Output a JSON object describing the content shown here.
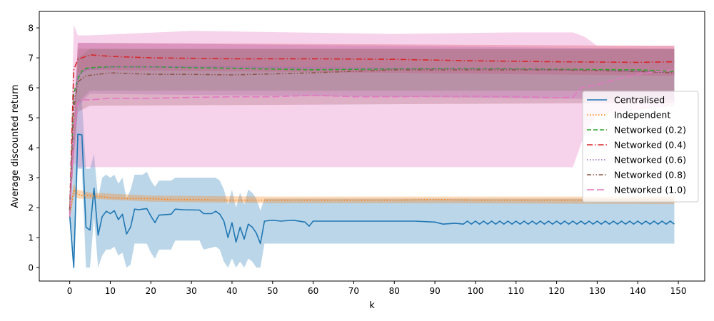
{
  "chart_data": {
    "type": "line",
    "title": "",
    "xlabel": "k",
    "ylabel": "Average discounted return",
    "xlim": [
      -7.5,
      156.5
    ],
    "ylim": [
      -0.45,
      8.55
    ],
    "xticks": [
      0,
      10,
      20,
      30,
      40,
      50,
      60,
      70,
      80,
      90,
      100,
      110,
      120,
      130,
      140,
      150
    ],
    "yticks": [
      0,
      1,
      2,
      3,
      4,
      5,
      6,
      7,
      8
    ],
    "grid": false,
    "legend_position": "center-right",
    "series": [
      {
        "name": "Centralised",
        "color": "#1f77b4",
        "style": "solid",
        "points": [
          [
            0,
            1.75
          ],
          [
            1,
            0.0
          ],
          [
            2,
            4.45
          ],
          [
            3,
            4.43
          ],
          [
            4,
            1.35
          ],
          [
            5,
            1.25
          ],
          [
            6,
            2.65
          ],
          [
            7,
            1.08
          ],
          [
            8,
            1.7
          ],
          [
            9,
            1.88
          ],
          [
            10,
            1.8
          ],
          [
            11,
            1.9
          ],
          [
            12,
            1.6
          ],
          [
            13,
            1.78
          ],
          [
            14,
            1.12
          ],
          [
            15,
            1.35
          ],
          [
            16,
            1.95
          ],
          [
            17,
            1.93
          ],
          [
            18,
            1.95
          ],
          [
            19,
            1.97
          ],
          [
            20,
            1.72
          ],
          [
            21,
            1.5
          ],
          [
            22,
            1.75
          ],
          [
            25,
            1.78
          ],
          [
            26,
            1.95
          ],
          [
            28,
            1.93
          ],
          [
            32,
            1.92
          ],
          [
            33,
            1.8
          ],
          [
            35,
            1.8
          ],
          [
            36,
            1.88
          ],
          [
            37,
            1.78
          ],
          [
            38,
            1.55
          ],
          [
            39,
            1.0
          ],
          [
            40,
            1.5
          ],
          [
            41,
            0.85
          ],
          [
            42,
            1.35
          ],
          [
            43,
            0.95
          ],
          [
            44,
            1.45
          ],
          [
            45,
            1.35
          ],
          [
            46,
            1.15
          ],
          [
            47,
            0.8
          ],
          [
            48,
            1.55
          ],
          [
            50,
            1.58
          ],
          [
            52,
            1.55
          ],
          [
            55,
            1.58
          ],
          [
            58,
            1.52
          ],
          [
            59,
            1.38
          ],
          [
            60,
            1.55
          ],
          [
            65,
            1.55
          ],
          [
            70,
            1.55
          ],
          [
            75,
            1.55
          ],
          [
            80,
            1.55
          ],
          [
            85,
            1.55
          ],
          [
            90,
            1.52
          ],
          [
            92,
            1.45
          ],
          [
            95,
            1.48
          ],
          [
            97,
            1.45
          ],
          [
            98,
            1.55
          ],
          [
            99,
            1.45
          ],
          [
            100,
            1.55
          ],
          [
            101,
            1.45
          ],
          [
            102,
            1.55
          ],
          [
            103,
            1.45
          ],
          [
            104,
            1.55
          ],
          [
            105,
            1.45
          ],
          [
            106,
            1.55
          ],
          [
            107,
            1.45
          ],
          [
            108,
            1.55
          ],
          [
            109,
            1.45
          ],
          [
            110,
            1.55
          ],
          [
            111,
            1.45
          ],
          [
            112,
            1.55
          ],
          [
            113,
            1.45
          ],
          [
            114,
            1.55
          ],
          [
            115,
            1.45
          ],
          [
            116,
            1.55
          ],
          [
            117,
            1.45
          ],
          [
            118,
            1.55
          ],
          [
            119,
            1.45
          ],
          [
            120,
            1.55
          ],
          [
            121,
            1.45
          ],
          [
            122,
            1.55
          ],
          [
            123,
            1.45
          ],
          [
            124,
            1.55
          ],
          [
            125,
            1.45
          ],
          [
            126,
            1.55
          ],
          [
            127,
            1.45
          ],
          [
            128,
            1.55
          ],
          [
            129,
            1.45
          ],
          [
            130,
            1.55
          ],
          [
            131,
            1.45
          ],
          [
            132,
            1.55
          ],
          [
            133,
            1.45
          ],
          [
            134,
            1.55
          ],
          [
            135,
            1.45
          ],
          [
            136,
            1.55
          ],
          [
            137,
            1.45
          ],
          [
            138,
            1.55
          ],
          [
            139,
            1.45
          ],
          [
            140,
            1.55
          ],
          [
            141,
            1.45
          ],
          [
            142,
            1.55
          ],
          [
            143,
            1.45
          ],
          [
            144,
            1.55
          ],
          [
            145,
            1.45
          ],
          [
            146,
            1.55
          ],
          [
            147,
            1.45
          ],
          [
            148,
            1.55
          ],
          [
            149,
            1.45
          ]
        ],
        "band": [
          [
            0,
            1.7,
            1.8
          ],
          [
            1,
            0.0,
            3.3
          ],
          [
            2,
            3.3,
            5.6
          ],
          [
            3,
            3.3,
            5.6
          ],
          [
            4,
            0.0,
            3.3
          ],
          [
            5,
            0.0,
            3.3
          ],
          [
            6,
            1.7,
            3.8
          ],
          [
            7,
            0.0,
            2.3
          ],
          [
            8,
            0.4,
            3.0
          ],
          [
            9,
            0.6,
            3.1
          ],
          [
            10,
            0.6,
            3.0
          ],
          [
            11,
            0.7,
            3.1
          ],
          [
            12,
            0.4,
            2.8
          ],
          [
            13,
            0.5,
            3.0
          ],
          [
            14,
            0.0,
            2.3
          ],
          [
            15,
            0.1,
            2.6
          ],
          [
            16,
            0.8,
            3.1
          ],
          [
            17,
            0.8,
            3.1
          ],
          [
            18,
            0.8,
            3.1
          ],
          [
            19,
            0.8,
            3.2
          ],
          [
            20,
            0.5,
            2.9
          ],
          [
            21,
            0.3,
            2.7
          ],
          [
            22,
            0.6,
            2.9
          ],
          [
            25,
            0.6,
            2.9
          ],
          [
            26,
            0.9,
            3.0
          ],
          [
            32,
            0.9,
            3.0
          ],
          [
            33,
            0.6,
            3.0
          ],
          [
            36,
            0.7,
            3.0
          ],
          [
            37,
            0.6,
            2.9
          ],
          [
            38,
            0.2,
            2.6
          ],
          [
            39,
            0.0,
            2.1
          ],
          [
            40,
            0.3,
            2.6
          ],
          [
            41,
            0.0,
            2.0
          ],
          [
            42,
            0.2,
            2.5
          ],
          [
            43,
            0.0,
            2.1
          ],
          [
            44,
            0.3,
            2.6
          ],
          [
            45,
            0.2,
            2.5
          ],
          [
            46,
            0.0,
            2.3
          ],
          [
            47,
            0.0,
            1.9
          ],
          [
            48,
            0.8,
            2.3
          ],
          [
            60,
            0.8,
            2.3
          ],
          [
            90,
            0.8,
            2.3
          ],
          [
            149,
            0.8,
            2.3
          ]
        ]
      },
      {
        "name": "Independent",
        "color": "#ff7f0e",
        "style": "dotted",
        "points": [
          [
            0,
            1.7
          ],
          [
            1,
            2.6
          ],
          [
            2,
            2.45
          ],
          [
            3,
            2.4
          ],
          [
            5,
            2.4
          ],
          [
            10,
            2.33
          ],
          [
            15,
            2.3
          ],
          [
            20,
            2.3
          ],
          [
            25,
            2.27
          ],
          [
            30,
            2.27
          ],
          [
            40,
            2.25
          ],
          [
            50,
            2.25
          ],
          [
            60,
            2.25
          ],
          [
            70,
            2.25
          ],
          [
            80,
            2.25
          ],
          [
            90,
            2.27
          ],
          [
            100,
            2.25
          ],
          [
            110,
            2.25
          ],
          [
            120,
            2.25
          ],
          [
            130,
            2.25
          ],
          [
            140,
            2.25
          ],
          [
            149,
            2.25
          ]
        ],
        "band": [
          [
            0,
            1.6,
            1.8
          ],
          [
            1,
            2.4,
            2.8
          ],
          [
            2,
            2.3,
            2.6
          ],
          [
            5,
            2.3,
            2.5
          ],
          [
            20,
            2.2,
            2.4
          ],
          [
            50,
            2.15,
            2.37
          ],
          [
            90,
            2.15,
            2.37
          ],
          [
            149,
            2.12,
            2.37
          ]
        ]
      },
      {
        "name": "Networked (0.2)",
        "color": "#2ca02c",
        "style": "dashed",
        "points": [
          [
            0,
            1.8
          ],
          [
            1,
            5.8
          ],
          [
            2,
            6.3
          ],
          [
            3,
            6.55
          ],
          [
            4,
            6.65
          ],
          [
            6,
            6.68
          ],
          [
            10,
            6.7
          ],
          [
            20,
            6.7
          ],
          [
            40,
            6.65
          ],
          [
            60,
            6.6
          ],
          [
            80,
            6.63
          ],
          [
            100,
            6.65
          ],
          [
            120,
            6.62
          ],
          [
            140,
            6.6
          ],
          [
            149,
            6.55
          ]
        ],
        "band": [
          [
            0,
            1.7,
            1.9
          ],
          [
            2,
            5.5,
            7.0
          ],
          [
            5,
            5.9,
            7.3
          ],
          [
            149,
            5.9,
            7.3
          ]
        ]
      },
      {
        "name": "Networked (0.4)",
        "color": "#d62728",
        "style": "dashdot",
        "points": [
          [
            0,
            1.9
          ],
          [
            1,
            6.6
          ],
          [
            2,
            6.95
          ],
          [
            3,
            7.0
          ],
          [
            5,
            7.1
          ],
          [
            10,
            7.05
          ],
          [
            20,
            7.0
          ],
          [
            40,
            6.97
          ],
          [
            60,
            6.97
          ],
          [
            80,
            6.95
          ],
          [
            100,
            6.9
          ],
          [
            120,
            6.87
          ],
          [
            140,
            6.85
          ],
          [
            149,
            6.87
          ]
        ],
        "band": [
          [
            0,
            1.8,
            2.0
          ],
          [
            2,
            6.5,
            7.5
          ],
          [
            5,
            6.6,
            7.5
          ],
          [
            149,
            6.4,
            7.4
          ]
        ]
      },
      {
        "name": "Networked (0.6)",
        "color": "#9467bd",
        "style": "dotted",
        "points": [
          [
            0,
            1.8
          ],
          [
            1,
            5.5
          ],
          [
            2,
            6.4
          ],
          [
            4,
            6.6
          ],
          [
            10,
            6.7
          ],
          [
            20,
            6.7
          ],
          [
            40,
            6.7
          ],
          [
            60,
            6.67
          ],
          [
            80,
            6.65
          ],
          [
            100,
            6.65
          ],
          [
            120,
            6.6
          ],
          [
            140,
            6.55
          ],
          [
            149,
            6.5
          ]
        ],
        "band": [
          [
            0,
            1.7,
            1.9
          ],
          [
            2,
            5.4,
            7.5
          ],
          [
            5,
            5.8,
            7.5
          ],
          [
            149,
            5.6,
            7.3
          ]
        ]
      },
      {
        "name": "Networked (0.8)",
        "color": "#8c564b",
        "style": "dashdotdot",
        "points": [
          [
            0,
            1.9
          ],
          [
            1,
            5.3
          ],
          [
            2,
            6.2
          ],
          [
            4,
            6.4
          ],
          [
            10,
            6.5
          ],
          [
            20,
            6.45
          ],
          [
            30,
            6.45
          ],
          [
            40,
            6.43
          ],
          [
            60,
            6.5
          ],
          [
            80,
            6.6
          ],
          [
            100,
            6.6
          ],
          [
            120,
            6.6
          ],
          [
            140,
            6.55
          ],
          [
            149,
            6.5
          ]
        ],
        "band": [
          [
            0,
            1.8,
            2.0
          ],
          [
            2,
            5.2,
            7.3
          ],
          [
            5,
            5.4,
            7.3
          ],
          [
            149,
            5.5,
            7.3
          ]
        ]
      },
      {
        "name": "Networked (1.0)",
        "color": "#e377c2",
        "style": "longdash",
        "points": [
          [
            0,
            1.7
          ],
          [
            1,
            4.5
          ],
          [
            2,
            5.5
          ],
          [
            3,
            5.6
          ],
          [
            5,
            5.6
          ],
          [
            10,
            5.65
          ],
          [
            20,
            5.65
          ],
          [
            30,
            5.68
          ],
          [
            40,
            5.7
          ],
          [
            50,
            5.7
          ],
          [
            60,
            5.75
          ],
          [
            70,
            5.7
          ],
          [
            80,
            5.7
          ],
          [
            90,
            5.72
          ],
          [
            100,
            5.72
          ],
          [
            110,
            5.7
          ],
          [
            120,
            5.67
          ],
          [
            124,
            5.68
          ],
          [
            126,
            6.0
          ],
          [
            130,
            6.1
          ],
          [
            135,
            6.3
          ],
          [
            140,
            6.45
          ],
          [
            145,
            6.55
          ],
          [
            149,
            6.6
          ]
        ],
        "band": [
          [
            0,
            1.5,
            2.0
          ],
          [
            1,
            3.5,
            8.1
          ],
          [
            2,
            3.35,
            7.75
          ],
          [
            5,
            3.35,
            7.75
          ],
          [
            30,
            3.35,
            7.9
          ],
          [
            80,
            3.35,
            7.8
          ],
          [
            110,
            3.35,
            7.85
          ],
          [
            124,
            3.35,
            7.85
          ],
          [
            127,
            4.5,
            7.7
          ],
          [
            130,
            5.1,
            7.4
          ],
          [
            149,
            5.4,
            7.4
          ]
        ]
      }
    ]
  }
}
